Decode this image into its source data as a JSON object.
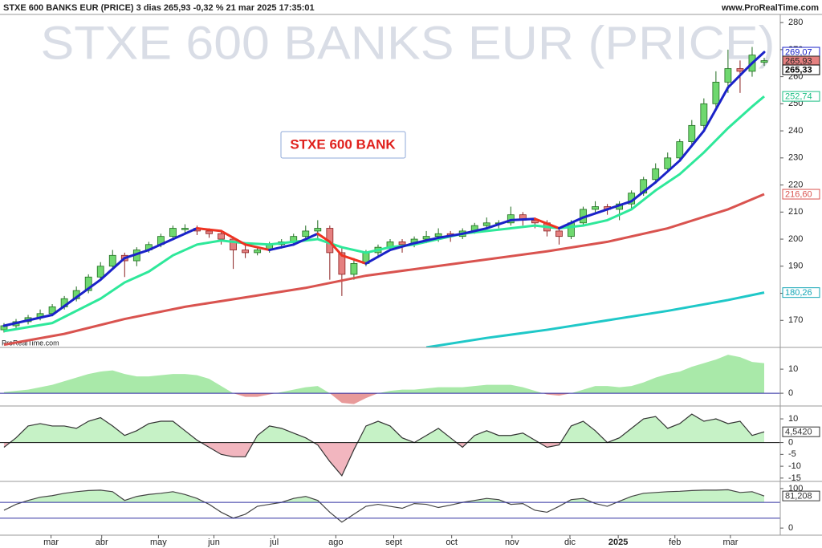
{
  "header": {
    "title": "STXE 600 BANKS EUR (PRICE) 3 dias 265,93 -0,32 % 21 mar 2025 17:35:01",
    "site": "www.ProRealTime.com"
  },
  "chart_data": [
    {
      "type": "candlestick",
      "watermark": "STXE 600 BANKS EUR (PRICE)",
      "annotation": "STXE 600 BANK",
      "credit": "ProRealTime.com",
      "xlim": [
        -0.33,
        64.33
      ],
      "xticks": [
        {
          "value": 3.9,
          "label": "mar"
        },
        {
          "value": 8.1,
          "label": "abr"
        },
        {
          "value": 12.8,
          "label": "may"
        },
        {
          "value": 17.4,
          "label": "jun"
        },
        {
          "value": 22.4,
          "label": "jul"
        },
        {
          "value": 27.5,
          "label": "ago"
        },
        {
          "value": 32.3,
          "label": "sept"
        },
        {
          "value": 37.1,
          "label": "oct"
        },
        {
          "value": 42.1,
          "label": "nov"
        },
        {
          "value": 46.9,
          "label": "dic"
        },
        {
          "value": 50.9,
          "label": "2025",
          "bold": true
        },
        {
          "value": 55.6,
          "label": "feb"
        },
        {
          "value": 60.2,
          "label": "mar"
        }
      ],
      "ylim": [
        160,
        283
      ],
      "yticks": [
        170,
        180,
        190,
        200,
        210,
        220,
        230,
        240,
        250,
        260,
        270,
        280
      ],
      "up_color": "#6fd86f",
      "up_edge": "#1f6b1f",
      "down_color": "#e58080",
      "down_edge": "#8a2020",
      "open": [
        166.5,
        168,
        169.5,
        171,
        172.5,
        175,
        178,
        181,
        186,
        190,
        194,
        192,
        196,
        198,
        201,
        203.5,
        204,
        203,
        202,
        200,
        196,
        195,
        196,
        198,
        199,
        201,
        203,
        204,
        195,
        187,
        191,
        195,
        197,
        199,
        198,
        200,
        201,
        202,
        201,
        203,
        205,
        206,
        206,
        209,
        207,
        206,
        203,
        201,
        206,
        211,
        212,
        211,
        213,
        217,
        222,
        226,
        230,
        236,
        242,
        250,
        258,
        263,
        262,
        265.3
      ],
      "high": [
        169,
        170.5,
        172,
        174,
        176,
        179,
        182.5,
        187,
        191.5,
        196,
        195,
        197,
        199,
        202,
        205,
        205.5,
        205,
        204,
        203,
        201,
        198,
        197,
        199,
        200,
        202,
        205,
        207,
        205,
        197,
        193,
        196,
        198,
        200,
        200,
        201,
        203,
        204,
        203,
        204,
        206,
        208,
        207,
        212,
        210,
        208,
        207,
        204,
        207,
        212,
        214,
        213,
        214,
        218,
        223,
        228,
        232,
        237,
        244,
        252,
        262,
        270,
        266,
        271,
        267
      ],
      "low": [
        165.5,
        167,
        168.5,
        170,
        171.5,
        174,
        177,
        180,
        185,
        189,
        186,
        190,
        195,
        197,
        200,
        202,
        201.5,
        200.5,
        198,
        189,
        193,
        194,
        195,
        196.5,
        198,
        200,
        200,
        185,
        179,
        185,
        190,
        193,
        196,
        195,
        197,
        198.5,
        199,
        199,
        200,
        202,
        204,
        204,
        205,
        205,
        204,
        201,
        198,
        200,
        205,
        210,
        209,
        207,
        211,
        216,
        221,
        225,
        229,
        234,
        240,
        248,
        254,
        254,
        260,
        264
      ],
      "close": [
        168,
        169.5,
        171,
        172.5,
        175,
        178,
        181,
        186,
        190,
        194,
        192,
        196,
        198,
        201,
        204,
        204,
        203,
        202,
        200,
        196,
        195,
        196,
        198,
        199,
        201,
        203,
        204,
        195,
        187,
        191,
        195,
        197,
        199,
        198,
        200,
        201,
        202,
        201,
        203,
        205,
        206,
        206,
        209,
        207,
        206,
        203,
        201,
        206,
        211,
        212,
        211,
        213,
        217,
        222,
        226,
        230,
        236,
        242,
        250,
        258,
        263,
        262,
        268,
        265.93
      ],
      "series": [
        {
          "color": "#d9534f",
          "width": 3,
          "x": [
            0,
            5,
            10,
            15,
            20,
            25,
            30,
            35,
            40,
            45,
            50,
            55,
            60,
            63
          ],
          "values": [
            161,
            165,
            170.5,
            175,
            178.5,
            182,
            186.5,
            189.5,
            192.5,
            195.5,
            199,
            204,
            211,
            216.6
          ]
        },
        {
          "color": "#1fc8c8",
          "width": 3,
          "x": [
            35,
            40,
            45,
            50,
            55,
            60,
            63
          ],
          "values": [
            160,
            163.5,
            166.5,
            170,
            173.5,
            177.5,
            180.26
          ]
        },
        {
          "color": "#2ee89a",
          "width": 3,
          "x": [
            0,
            4,
            8,
            10,
            12,
            14,
            16,
            18,
            20,
            22,
            24,
            26,
            28,
            30,
            32,
            34,
            36,
            38,
            40,
            42,
            44,
            46,
            48,
            50,
            52,
            54,
            56,
            58,
            60,
            62,
            63
          ],
          "values": [
            166,
            169,
            178,
            184,
            188,
            194,
            198,
            199.5,
            198.5,
            198,
            199,
            200,
            197,
            195,
            197,
            198,
            200,
            202,
            203,
            204,
            205,
            204,
            205,
            207,
            211,
            218,
            224,
            232,
            241,
            249,
            252.74
          ]
        },
        {
          "color": "#1a22c8",
          "down_color": "#ee3322",
          "width": 3,
          "x": [
            0,
            4,
            8,
            10,
            12,
            14,
            16,
            18,
            20,
            22,
            24,
            26,
            27,
            28,
            30,
            32,
            34,
            36,
            38,
            40,
            42,
            44,
            46,
            48,
            50,
            52,
            54,
            56,
            58,
            60,
            62,
            63
          ],
          "values": [
            168,
            172,
            185,
            193,
            196,
            200,
            204,
            203,
            198,
            196,
            198,
            202,
            199,
            194,
            191,
            196,
            198.5,
            200.5,
            202,
            204,
            207,
            207.5,
            204,
            208,
            211,
            214,
            221,
            229,
            240,
            256,
            265,
            269.07
          ]
        }
      ],
      "price_labels": [
        {
          "value": 269.07,
          "label": "269,07",
          "color": "#1a22c8"
        },
        {
          "value": 265.93,
          "label": "265,93",
          "color": "#222",
          "fill": "#e58080"
        },
        {
          "value": 265.33,
          "label": "265,33",
          "color": "#000"
        },
        {
          "value": 252.74,
          "label": "252,74",
          "color": "#1dbf85"
        },
        {
          "value": 216.6,
          "label": "216,60",
          "color": "#d9534f"
        },
        {
          "value": 180.26,
          "label": "180,26",
          "color": "#12a5b5"
        }
      ]
    },
    {
      "type": "area",
      "ylim": [
        -5.3,
        18.7
      ],
      "yticks": [
        10,
        0
      ],
      "levels": [
        0
      ],
      "level_color": "#2a2aa0",
      "color": "#a9e9a9",
      "negative_color": "#e89a9a",
      "values": [
        0.5,
        1,
        1.5,
        2.5,
        3.5,
        5,
        6.5,
        8,
        9,
        9.5,
        8,
        7,
        7,
        7.5,
        8,
        8,
        7.5,
        6,
        3,
        0,
        -1.5,
        -1.5,
        -0.5,
        0.5,
        1.5,
        2.5,
        3,
        0,
        -4,
        -4.5,
        -2,
        0,
        1,
        1.5,
        1.5,
        2,
        2.5,
        2.5,
        2.5,
        3,
        3.5,
        3.5,
        3.5,
        2.5,
        1,
        -0.5,
        -1,
        0,
        1.5,
        3,
        3,
        2.5,
        3,
        4.5,
        6.5,
        8,
        9,
        11,
        12.5,
        14,
        16,
        15,
        13,
        12.5
      ]
    },
    {
      "type": "line",
      "ylim": [
        -16.4,
        15.1
      ],
      "yticks": [
        10,
        0,
        -5,
        -10,
        -15
      ],
      "levels": [
        0
      ],
      "level_color": "#111",
      "color": "#333",
      "fill_color": "#c6f2c6",
      "negative_color": "#f2b6bf",
      "values": [
        -2,
        2,
        7,
        8,
        7,
        7,
        6,
        9,
        10.5,
        7,
        3,
        5,
        8,
        9,
        9,
        5,
        1,
        -2,
        -5,
        -6,
        -6,
        3,
        7,
        6,
        4,
        2,
        -1,
        -8,
        -14,
        -3,
        7,
        9,
        7,
        2,
        0,
        3,
        6,
        2,
        -2,
        3,
        5,
        3,
        3,
        4,
        1,
        -2,
        -1,
        7,
        9,
        5,
        0,
        2,
        6,
        10,
        11,
        6,
        8,
        12,
        9,
        10,
        8,
        9,
        3,
        4.542
      ],
      "marker_label": {
        "value": 4.542,
        "label": "4,5420"
      }
    },
    {
      "type": "line",
      "ylim": [
        -18,
        116
      ],
      "yticks": [
        100,
        0
      ],
      "levels": [
        65,
        25
      ],
      "level_color": "#3030a0",
      "color": "#444",
      "fill_color": "#c6f2c6",
      "values": [
        45,
        60,
        70,
        78,
        82,
        88,
        92,
        95,
        96,
        92,
        70,
        80,
        85,
        88,
        92,
        85,
        75,
        60,
        40,
        25,
        35,
        55,
        60,
        65,
        75,
        80,
        70,
        40,
        15,
        35,
        55,
        60,
        55,
        50,
        62,
        60,
        52,
        58,
        65,
        70,
        75,
        72,
        60,
        62,
        45,
        40,
        55,
        72,
        75,
        62,
        55,
        68,
        80,
        88,
        90,
        92,
        93,
        95,
        96,
        96,
        97,
        90,
        92,
        81.208
      ],
      "marker_label": {
        "value": 81.208,
        "label": "81,208"
      }
    }
  ]
}
